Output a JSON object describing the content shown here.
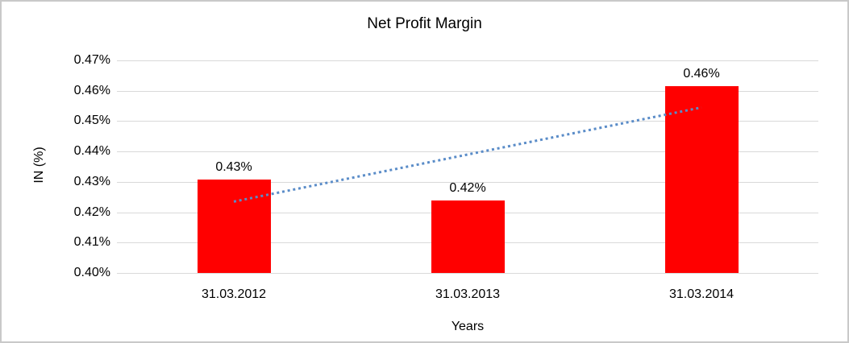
{
  "window": {
    "background": "#FFFFFF",
    "frame_border_color": "#C9C9C9"
  },
  "chart_data": {
    "type": "bar",
    "title": "Net Profit Margin",
    "xlabel": "Years",
    "ylabel": "IN (%)",
    "categories": [
      "31.03.2012",
      "31.03.2013",
      "31.03.2014"
    ],
    "series": [
      {
        "name": "Net Profit Margin",
        "values": [
          0.43,
          0.42,
          0.46
        ],
        "values_precise_est": [
          0.4307,
          0.4238,
          0.4615
        ],
        "color": "#FF0000"
      }
    ],
    "data_labels": [
      "0.43%",
      "0.42%",
      "0.46%"
    ],
    "y_ticks": [
      {
        "label": "0.47%",
        "value": 0.47
      },
      {
        "label": "0.46%",
        "value": 0.46
      },
      {
        "label": "0.45%",
        "value": 0.45
      },
      {
        "label": "0.44%",
        "value": 0.44
      },
      {
        "label": "0.43%",
        "value": 0.43
      },
      {
        "label": "0.42%",
        "value": 0.42
      },
      {
        "label": "0.41%",
        "value": 0.41
      },
      {
        "label": "0.40%",
        "value": 0.4
      }
    ],
    "ylim": [
      0.4,
      0.47
    ],
    "grid": true,
    "gridline_color": "#D9D9D9",
    "legend": "none",
    "trendline": {
      "style": "dotted",
      "color": "#5A8CC8",
      "start_value": 0.4235,
      "end_value": 0.4545
    }
  }
}
